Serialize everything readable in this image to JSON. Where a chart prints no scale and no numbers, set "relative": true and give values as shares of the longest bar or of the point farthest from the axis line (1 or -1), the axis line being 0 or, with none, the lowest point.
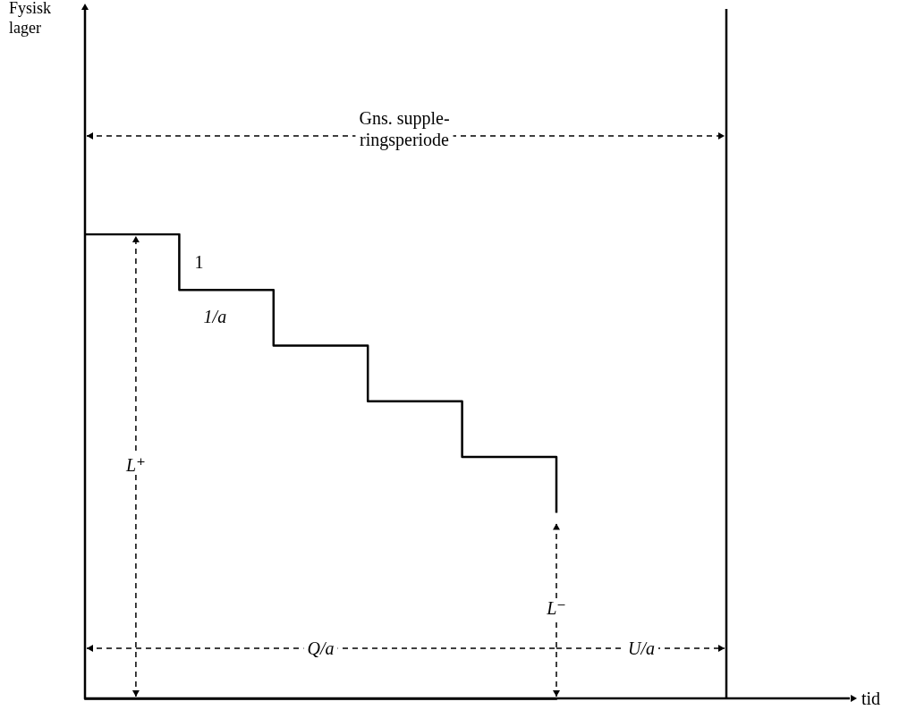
{
  "chart_data": {
    "type": "step",
    "relative": true,
    "categories": [
      null,
      null,
      null,
      null,
      null,
      null
    ],
    "values": [
      1,
      0.88,
      0.76,
      0.64,
      0.52,
      0.4
    ],
    "color": "#000000",
    "marker": "none",
    "line_style": "solid",
    "annotations": [
      "Gns. supple-\nringsperiode",
      "1",
      "1/a",
      "L⁺",
      "L⁻",
      "Q/a",
      "U/a",
      "Fysisk\nlager",
      "tid"
    ]
  }
}
